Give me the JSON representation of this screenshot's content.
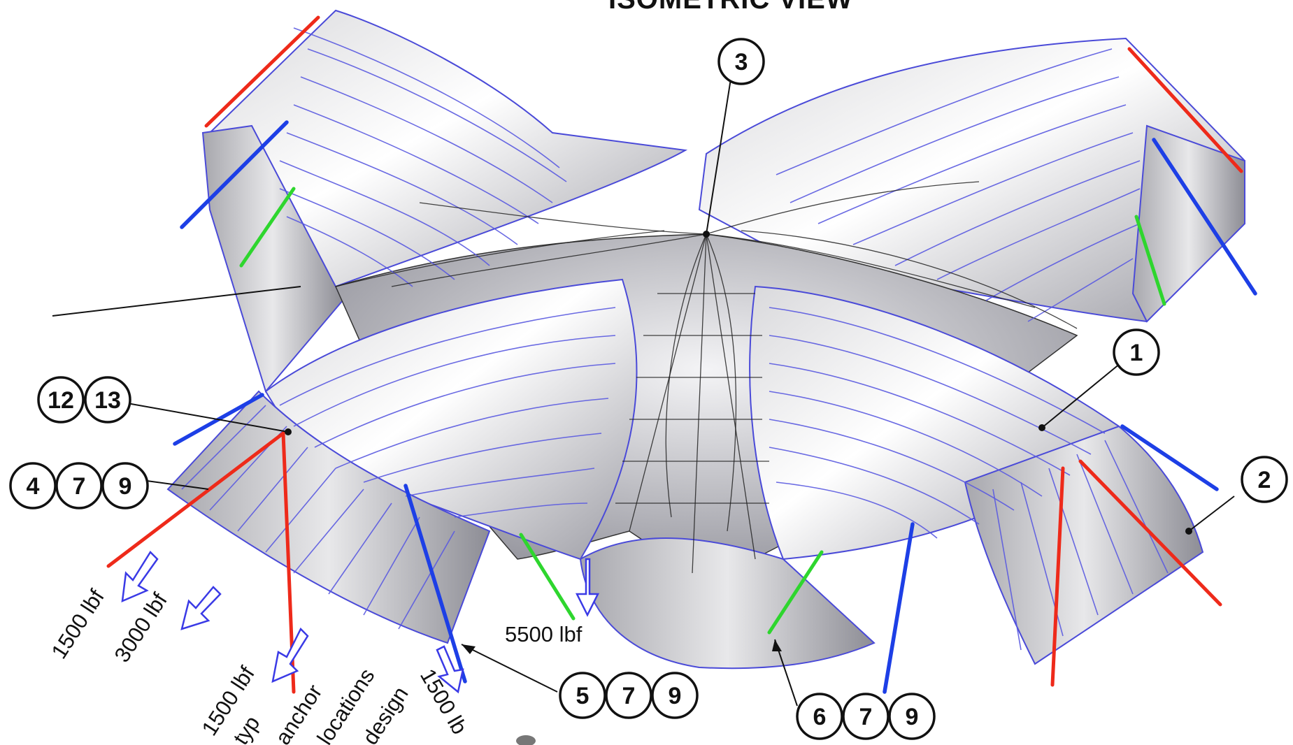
{
  "diagram": {
    "title": "ISOMETRIC VIEW",
    "callouts": {
      "c1": [
        "1"
      ],
      "c2": [
        "2"
      ],
      "c3": [
        "3"
      ],
      "c12_13": [
        "12",
        "13"
      ],
      "c4_7_9": [
        "4",
        "7",
        "9"
      ],
      "c5_7_9": [
        "5",
        "7",
        "9"
      ],
      "c6_7_9": [
        "6",
        "7",
        "9"
      ]
    },
    "loads": {
      "l1": "1500 lbf",
      "l2": "3000 lbf",
      "l3": "1500 lbf",
      "l4": "5500 lbf",
      "l5": "1500 lb"
    },
    "notes": {
      "partial1": "typ",
      "partial2": "anchor",
      "partial3": "locations",
      "partial4": "design"
    },
    "colors": {
      "membrane_stripes": "#5a5ae0",
      "ridge_cables": "#ee2a1a",
      "edge_cables": "#1d3fe6",
      "valley_cables": "#2ed62e",
      "load_arrows": "#3a3ae6"
    }
  }
}
